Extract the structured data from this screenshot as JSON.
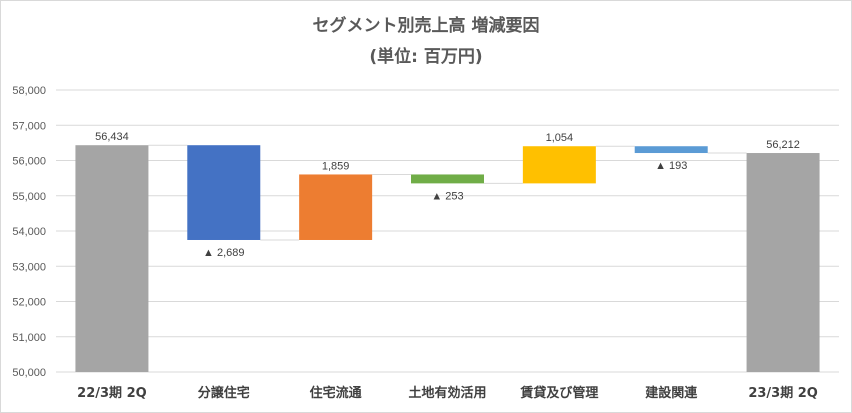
{
  "chart_data": {
    "type": "waterfall",
    "title": "セグメント別売上高 増減要因",
    "subtitle": "(単位: 百万円)",
    "categories": [
      "22/3期 2Q",
      "分譲住宅",
      "住宅流通",
      "土地有効活用",
      "賃貸及び管理",
      "建設関連",
      "23/3期 2Q"
    ],
    "values": [
      56434,
      -2689,
      1859,
      -253,
      1054,
      -193,
      56212
    ],
    "kinds": [
      "total",
      "delta",
      "delta",
      "delta",
      "delta",
      "delta",
      "total"
    ],
    "data_labels": [
      "56,434",
      "▲ 2,689",
      "1,859",
      "▲ 253",
      "1,054",
      "▲ 193",
      "56,212"
    ],
    "colors": [
      "#a5a5a5",
      "#4472c4",
      "#ed7d31",
      "#70ad47",
      "#ffc000",
      "#5b9bd5",
      "#a5a5a5"
    ],
    "ylim": [
      50000,
      58000
    ],
    "yticks": [
      "50,000",
      "51,000",
      "52,000",
      "53,000",
      "54,000",
      "55,000",
      "56,000",
      "57,000",
      "58,000"
    ],
    "grid": true,
    "connector_color": "#d9d9d9",
    "xlabel": "",
    "ylabel": ""
  }
}
